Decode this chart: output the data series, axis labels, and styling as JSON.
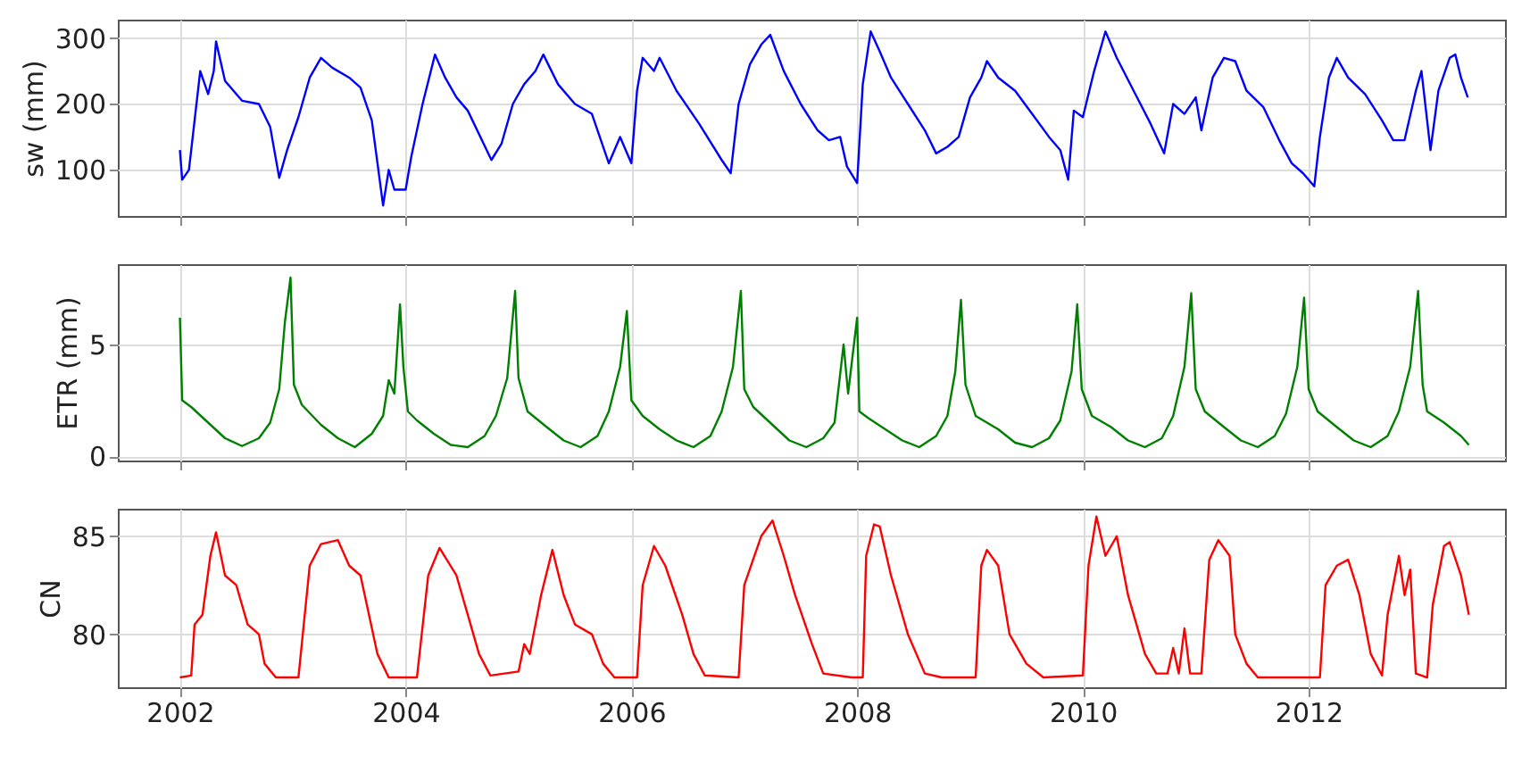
{
  "chart_data": [
    {
      "type": "line",
      "ylabel": "sw (mm)",
      "xlim": [
        2001.45,
        2013.74
      ],
      "xticks": [
        2002,
        2004,
        2006,
        2008,
        2010,
        2012
      ],
      "ylim": [
        30,
        328
      ],
      "yticks": [
        100,
        200,
        300
      ],
      "grid": true,
      "tick_labels": "y",
      "series": [
        {
          "color": "#0000ff",
          "x": [
            2002.0,
            2002.02,
            2002.08,
            2002.12,
            2002.18,
            2002.25,
            2002.3,
            2002.32,
            2002.4,
            2002.55,
            2002.7,
            2002.8,
            2002.88,
            2002.95,
            2003.05,
            2003.15,
            2003.25,
            2003.35,
            2003.5,
            2003.6,
            2003.7,
            2003.8,
            2003.85,
            2003.9,
            2004.0,
            2004.05,
            2004.15,
            2004.26,
            2004.35,
            2004.45,
            2004.55,
            2004.76,
            2004.85,
            2004.95,
            2005.05,
            2005.15,
            2005.22,
            2005.35,
            2005.5,
            2005.65,
            2005.8,
            2005.9,
            2006.0,
            2006.05,
            2006.1,
            2006.2,
            2006.25,
            2006.4,
            2006.6,
            2006.8,
            2006.88,
            2006.95,
            2007.05,
            2007.15,
            2007.23,
            2007.35,
            2007.5,
            2007.65,
            2007.75,
            2007.85,
            2007.91,
            2008.0,
            2008.05,
            2008.12,
            2008.2,
            2008.3,
            2008.45,
            2008.6,
            2008.7,
            2008.8,
            2008.9,
            2009.0,
            2009.1,
            2009.15,
            2009.25,
            2009.4,
            2009.55,
            2009.7,
            2009.8,
            2009.87,
            2009.92,
            2010.0,
            2010.1,
            2010.2,
            2010.3,
            2010.45,
            2010.6,
            2010.72,
            2010.8,
            2010.9,
            2011.0,
            2011.05,
            2011.15,
            2011.25,
            2011.35,
            2011.45,
            2011.6,
            2011.74,
            2011.85,
            2011.95,
            2012.05,
            2012.1,
            2012.18,
            2012.25,
            2012.35,
            2012.5,
            2012.65,
            2012.75,
            2012.85,
            2012.95,
            2013.0,
            2013.08,
            2013.15,
            2013.25,
            2013.3,
            2013.35,
            2013.41
          ],
          "values": [
            130,
            85,
            100,
            160,
            250,
            215,
            250,
            295,
            235,
            205,
            200,
            165,
            88,
            130,
            180,
            240,
            270,
            255,
            240,
            225,
            175,
            46,
            100,
            70,
            70,
            120,
            200,
            275,
            240,
            210,
            190,
            115,
            140,
            200,
            230,
            250,
            275,
            230,
            200,
            185,
            110,
            150,
            110,
            220,
            270,
            250,
            270,
            220,
            170,
            115,
            95,
            200,
            260,
            290,
            305,
            250,
            200,
            160,
            145,
            150,
            105,
            80,
            230,
            310,
            280,
            240,
            200,
            160,
            125,
            135,
            150,
            210,
            240,
            265,
            240,
            220,
            185,
            150,
            130,
            85,
            190,
            180,
            250,
            310,
            270,
            220,
            170,
            125,
            200,
            185,
            210,
            160,
            240,
            270,
            265,
            220,
            195,
            145,
            110,
            95,
            75,
            150,
            240,
            270,
            240,
            215,
            175,
            145,
            145,
            220,
            250,
            130,
            220,
            270,
            275,
            240,
            210
          ]
        }
      ]
    },
    {
      "type": "line",
      "ylabel": "ETR (mm)",
      "xlim": [
        2001.45,
        2013.74
      ],
      "xticks": [
        2002,
        2004,
        2006,
        2008,
        2010,
        2012
      ],
      "ylim": [
        -0.2,
        8.6
      ],
      "yticks": [
        0,
        5
      ],
      "grid": true,
      "tick_labels": "y",
      "series": [
        {
          "color": "#008000",
          "x": [
            2002.0,
            2002.02,
            2002.1,
            2002.25,
            2002.4,
            2002.55,
            2002.7,
            2002.8,
            2002.88,
            2002.93,
            2002.98,
            2003.01,
            2003.08,
            2003.25,
            2003.4,
            2003.55,
            2003.7,
            2003.8,
            2003.85,
            2003.9,
            2003.95,
            2003.98,
            2004.02,
            2004.1,
            2004.25,
            2004.4,
            2004.55,
            2004.7,
            2004.8,
            2004.9,
            2004.97,
            2005.0,
            2005.08,
            2005.25,
            2005.4,
            2005.55,
            2005.7,
            2005.8,
            2005.9,
            2005.96,
            2006.0,
            2006.1,
            2006.25,
            2006.4,
            2006.55,
            2006.7,
            2006.8,
            2006.9,
            2006.97,
            2007.0,
            2007.08,
            2007.25,
            2007.4,
            2007.55,
            2007.7,
            2007.8,
            2007.88,
            2007.92,
            2008.0,
            2008.02,
            2008.1,
            2008.25,
            2008.4,
            2008.55,
            2008.7,
            2008.8,
            2008.87,
            2008.92,
            2008.96,
            2009.05,
            2009.25,
            2009.4,
            2009.55,
            2009.7,
            2009.8,
            2009.9,
            2009.95,
            2009.99,
            2010.08,
            2010.25,
            2010.4,
            2010.55,
            2010.7,
            2010.8,
            2010.9,
            2010.96,
            2011.0,
            2011.08,
            2011.25,
            2011.4,
            2011.55,
            2011.7,
            2011.8,
            2011.9,
            2011.96,
            2012.0,
            2012.08,
            2012.25,
            2012.4,
            2012.55,
            2012.7,
            2012.8,
            2012.9,
            2012.97,
            2013.01,
            2013.05,
            2013.2,
            2013.35,
            2013.42
          ],
          "values": [
            6.2,
            2.5,
            2.2,
            1.5,
            0.8,
            0.45,
            0.8,
            1.5,
            3.0,
            6.0,
            8.0,
            3.2,
            2.3,
            1.4,
            0.8,
            0.4,
            1.0,
            1.8,
            3.4,
            2.8,
            6.8,
            4.0,
            2.0,
            1.6,
            1.0,
            0.5,
            0.4,
            0.9,
            1.8,
            3.5,
            7.4,
            3.5,
            2.0,
            1.3,
            0.7,
            0.4,
            0.9,
            2.0,
            4.0,
            6.5,
            2.5,
            1.8,
            1.2,
            0.7,
            0.4,
            0.9,
            2.0,
            4.0,
            7.4,
            3.0,
            2.2,
            1.4,
            0.7,
            0.4,
            0.8,
            1.5,
            5.0,
            2.8,
            6.2,
            2.0,
            1.7,
            1.2,
            0.7,
            0.4,
            0.9,
            1.8,
            3.8,
            7.0,
            3.2,
            1.8,
            1.2,
            0.6,
            0.4,
            0.8,
            1.6,
            3.8,
            6.8,
            3.0,
            1.8,
            1.3,
            0.7,
            0.4,
            0.8,
            1.8,
            4.0,
            7.3,
            3.0,
            2.0,
            1.3,
            0.7,
            0.4,
            0.9,
            1.9,
            4.0,
            7.1,
            3.0,
            2.0,
            1.3,
            0.7,
            0.4,
            0.9,
            2.0,
            4.0,
            7.4,
            3.2,
            2.0,
            1.5,
            0.9,
            0.5
          ]
        }
      ]
    },
    {
      "type": "line",
      "ylabel": "CN",
      "xlim": [
        2001.45,
        2013.74
      ],
      "xticks": [
        2002,
        2004,
        2006,
        2008,
        2010,
        2012
      ],
      "ylim": [
        77.3,
        86.4
      ],
      "yticks": [
        80,
        85
      ],
      "grid": true,
      "series": [
        {
          "color": "#ff0000",
          "x": [
            2002.0,
            2002.1,
            2002.13,
            2002.2,
            2002.27,
            2002.32,
            2002.4,
            2002.5,
            2002.6,
            2002.7,
            2002.75,
            2002.85,
            2003.05,
            2003.15,
            2003.25,
            2003.4,
            2003.5,
            2003.6,
            2003.75,
            2003.85,
            2004.1,
            2004.2,
            2004.3,
            2004.45,
            2004.55,
            2004.65,
            2004.75,
            2005.0,
            2005.05,
            2005.1,
            2005.2,
            2005.3,
            2005.4,
            2005.5,
            2005.65,
            2005.75,
            2005.85,
            2006.05,
            2006.1,
            2006.2,
            2006.3,
            2006.45,
            2006.55,
            2006.65,
            2006.95,
            2007.0,
            2007.15,
            2007.25,
            2007.35,
            2007.45,
            2007.6,
            2007.7,
            2007.95,
            2008.05,
            2008.08,
            2008.15,
            2008.2,
            2008.3,
            2008.45,
            2008.6,
            2008.75,
            2009.05,
            2009.1,
            2009.15,
            2009.25,
            2009.35,
            2009.5,
            2009.65,
            2010.0,
            2010.05,
            2010.12,
            2010.2,
            2010.3,
            2010.4,
            2010.55,
            2010.65,
            2010.75,
            2010.8,
            2010.85,
            2010.9,
            2010.95,
            2011.05,
            2011.12,
            2011.2,
            2011.3,
            2011.35,
            2011.45,
            2011.55,
            2012.1,
            2012.15,
            2012.25,
            2012.35,
            2012.45,
            2012.55,
            2012.65,
            2012.7,
            2012.8,
            2012.85,
            2012.9,
            2012.95,
            2013.05,
            2013.1,
            2013.2,
            2013.25,
            2013.35,
            2013.42
          ],
          "values": [
            77.8,
            77.9,
            80.5,
            81,
            84,
            85.2,
            83,
            82.5,
            80.5,
            80,
            78.5,
            77.8,
            77.8,
            83.5,
            84.6,
            84.8,
            83.5,
            83.0,
            79,
            77.8,
            77.8,
            83,
            84.4,
            83,
            81,
            79,
            77.9,
            78.1,
            79.5,
            79,
            82,
            84.3,
            82,
            80.5,
            80,
            78.5,
            77.8,
            77.8,
            82.5,
            84.5,
            83.5,
            81,
            79,
            77.9,
            77.8,
            82.5,
            85,
            85.8,
            84,
            82,
            79.5,
            78,
            77.8,
            77.8,
            84,
            85.6,
            85.5,
            83,
            80,
            78,
            77.8,
            77.8,
            83.5,
            84.3,
            83.5,
            80,
            78.5,
            77.8,
            77.9,
            83.5,
            86,
            84,
            85,
            82,
            79,
            78,
            78,
            79.3,
            78,
            80.3,
            78,
            78,
            83.8,
            84.8,
            84,
            80,
            78.5,
            77.8,
            77.8,
            82.5,
            83.5,
            83.8,
            82,
            79,
            77.9,
            81,
            84,
            82,
            83.3,
            78,
            77.8,
            81.5,
            84.5,
            84.7,
            83,
            81
          ]
        }
      ]
    }
  ]
}
